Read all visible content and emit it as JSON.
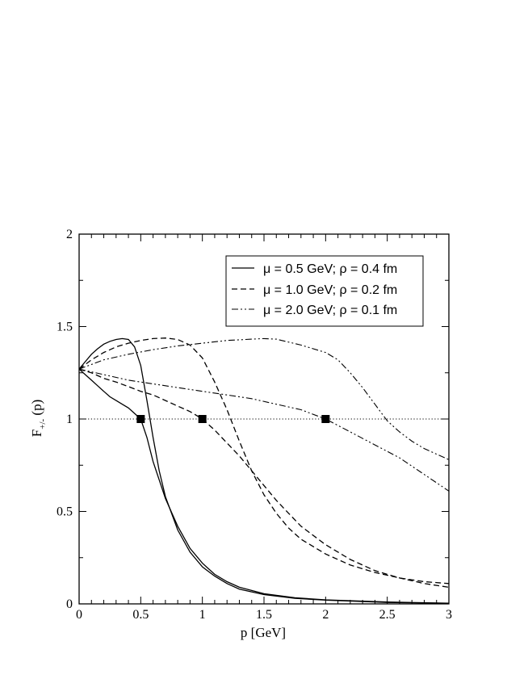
{
  "chart_data": {
    "type": "line",
    "title": "",
    "xlabel": "p [GeV]",
    "ylabel_main": "F",
    "ylabel_sub": "+/-",
    "ylabel_arg": " (p)",
    "xlim": [
      0,
      3
    ],
    "ylim": [
      0,
      2
    ],
    "x_ticks": [
      0,
      0.5,
      1,
      1.5,
      2,
      2.5,
      3
    ],
    "x_tick_labels": [
      "0",
      "0.5",
      "1",
      "1.5",
      "2",
      "2.5",
      "3"
    ],
    "y_ticks": [
      0,
      0.5,
      1,
      1.5,
      2
    ],
    "y_tick_labels": [
      "0",
      "0.5",
      "1",
      "1.5",
      "2"
    ],
    "grid": false,
    "legend_position": "top-right",
    "legend": [
      {
        "label": "μ = 0.5 GeV; ρ = 0.4 fm",
        "style": "solid"
      },
      {
        "label": "μ = 1.0 GeV; ρ = 0.2 fm",
        "style": "dashed"
      },
      {
        "label": "μ = 2.0 GeV; ρ = 0.1 fm",
        "style": "dash-dot"
      }
    ],
    "reference_line": {
      "y": 1,
      "style": "dotted"
    },
    "markers": [
      {
        "x": 0.5,
        "y": 1
      },
      {
        "x": 1.0,
        "y": 1
      },
      {
        "x": 2.0,
        "y": 1
      }
    ],
    "series": [
      {
        "style": "solid",
        "points": [
          [
            0,
            1.27
          ],
          [
            0.05,
            1.31
          ],
          [
            0.1,
            1.35
          ],
          [
            0.15,
            1.38
          ],
          [
            0.2,
            1.405
          ],
          [
            0.25,
            1.42
          ],
          [
            0.3,
            1.43
          ],
          [
            0.35,
            1.435
          ],
          [
            0.4,
            1.43
          ],
          [
            0.45,
            1.39
          ],
          [
            0.5,
            1.29
          ],
          [
            0.55,
            1.1
          ],
          [
            0.6,
            0.9
          ],
          [
            0.65,
            0.72
          ],
          [
            0.7,
            0.58
          ],
          [
            0.8,
            0.4
          ],
          [
            0.9,
            0.28
          ],
          [
            1.0,
            0.2
          ],
          [
            1.1,
            0.15
          ],
          [
            1.2,
            0.11
          ],
          [
            1.3,
            0.08
          ],
          [
            1.5,
            0.05
          ],
          [
            1.75,
            0.03
          ],
          [
            2.0,
            0.02
          ],
          [
            2.5,
            0.008
          ],
          [
            3.0,
            0.003
          ]
        ]
      },
      {
        "style": "solid",
        "points": [
          [
            0,
            1.27
          ],
          [
            0.05,
            1.24
          ],
          [
            0.1,
            1.21
          ],
          [
            0.15,
            1.18
          ],
          [
            0.2,
            1.15
          ],
          [
            0.25,
            1.12
          ],
          [
            0.3,
            1.1
          ],
          [
            0.35,
            1.08
          ],
          [
            0.4,
            1.06
          ],
          [
            0.45,
            1.03
          ],
          [
            0.5,
            1.0
          ],
          [
            0.55,
            0.9
          ],
          [
            0.6,
            0.77
          ],
          [
            0.7,
            0.57
          ],
          [
            0.8,
            0.42
          ],
          [
            0.9,
            0.3
          ],
          [
            1.0,
            0.22
          ],
          [
            1.1,
            0.16
          ],
          [
            1.2,
            0.12
          ],
          [
            1.3,
            0.09
          ],
          [
            1.5,
            0.055
          ],
          [
            1.75,
            0.033
          ],
          [
            2.0,
            0.022
          ],
          [
            2.5,
            0.01
          ],
          [
            3.0,
            0.004
          ]
        ]
      },
      {
        "style": "dashed",
        "points": [
          [
            0,
            1.27
          ],
          [
            0.1,
            1.32
          ],
          [
            0.2,
            1.36
          ],
          [
            0.3,
            1.39
          ],
          [
            0.4,
            1.41
          ],
          [
            0.5,
            1.425
          ],
          [
            0.6,
            1.435
          ],
          [
            0.7,
            1.438
          ],
          [
            0.8,
            1.43
          ],
          [
            0.9,
            1.4
          ],
          [
            1.0,
            1.33
          ],
          [
            1.1,
            1.2
          ],
          [
            1.2,
            1.05
          ],
          [
            1.3,
            0.88
          ],
          [
            1.4,
            0.72
          ],
          [
            1.5,
            0.59
          ],
          [
            1.6,
            0.49
          ],
          [
            1.7,
            0.41
          ],
          [
            1.8,
            0.35
          ],
          [
            2.0,
            0.27
          ],
          [
            2.2,
            0.21
          ],
          [
            2.4,
            0.17
          ],
          [
            2.6,
            0.14
          ],
          [
            2.8,
            0.12
          ],
          [
            3.0,
            0.11
          ]
        ]
      },
      {
        "style": "dashed",
        "points": [
          [
            0,
            1.27
          ],
          [
            0.1,
            1.25
          ],
          [
            0.2,
            1.22
          ],
          [
            0.3,
            1.2
          ],
          [
            0.4,
            1.175
          ],
          [
            0.5,
            1.15
          ],
          [
            0.6,
            1.13
          ],
          [
            0.7,
            1.1
          ],
          [
            0.8,
            1.07
          ],
          [
            0.9,
            1.04
          ],
          [
            1.0,
            1.0
          ],
          [
            1.1,
            0.94
          ],
          [
            1.2,
            0.87
          ],
          [
            1.3,
            0.8
          ],
          [
            1.4,
            0.72
          ],
          [
            1.5,
            0.64
          ],
          [
            1.6,
            0.56
          ],
          [
            1.7,
            0.49
          ],
          [
            1.8,
            0.42
          ],
          [
            2.0,
            0.32
          ],
          [
            2.2,
            0.24
          ],
          [
            2.4,
            0.18
          ],
          [
            2.6,
            0.14
          ],
          [
            2.8,
            0.11
          ],
          [
            3.0,
            0.09
          ]
        ]
      },
      {
        "style": "dash-dot",
        "points": [
          [
            0,
            1.27
          ],
          [
            0.2,
            1.32
          ],
          [
            0.4,
            1.35
          ],
          [
            0.6,
            1.375
          ],
          [
            0.8,
            1.395
          ],
          [
            1.0,
            1.41
          ],
          [
            1.2,
            1.425
          ],
          [
            1.4,
            1.432
          ],
          [
            1.5,
            1.435
          ],
          [
            1.6,
            1.432
          ],
          [
            1.8,
            1.4
          ],
          [
            2.0,
            1.36
          ],
          [
            2.1,
            1.32
          ],
          [
            2.2,
            1.25
          ],
          [
            2.3,
            1.17
          ],
          [
            2.4,
            1.08
          ],
          [
            2.5,
            0.99
          ],
          [
            2.6,
            0.93
          ],
          [
            2.7,
            0.88
          ],
          [
            2.8,
            0.84
          ],
          [
            2.9,
            0.81
          ],
          [
            3.0,
            0.78
          ]
        ]
      },
      {
        "style": "dash-dot",
        "points": [
          [
            0,
            1.27
          ],
          [
            0.2,
            1.24
          ],
          [
            0.4,
            1.21
          ],
          [
            0.6,
            1.19
          ],
          [
            0.8,
            1.17
          ],
          [
            1.0,
            1.15
          ],
          [
            1.2,
            1.13
          ],
          [
            1.4,
            1.11
          ],
          [
            1.6,
            1.08
          ],
          [
            1.8,
            1.05
          ],
          [
            2.0,
            1.0
          ],
          [
            2.2,
            0.93
          ],
          [
            2.4,
            0.86
          ],
          [
            2.6,
            0.79
          ],
          [
            2.8,
            0.7
          ],
          [
            3.0,
            0.61
          ]
        ]
      }
    ]
  }
}
